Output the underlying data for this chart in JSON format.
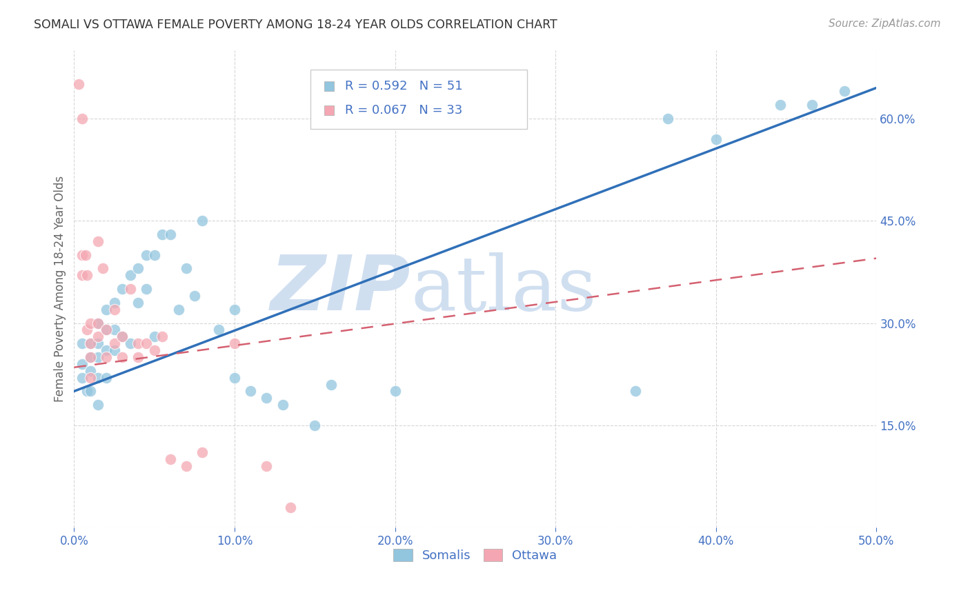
{
  "title": "SOMALI VS OTTAWA FEMALE POVERTY AMONG 18-24 YEAR OLDS CORRELATION CHART",
  "source": "Source: ZipAtlas.com",
  "ylabel": "Female Poverty Among 18-24 Year Olds",
  "xlim": [
    0.0,
    0.5
  ],
  "ylim": [
    0.0,
    0.7
  ],
  "yticks": [
    0.0,
    0.15,
    0.3,
    0.45,
    0.6
  ],
  "xticks": [
    0.0,
    0.1,
    0.2,
    0.3,
    0.4,
    0.5
  ],
  "somali_R": 0.592,
  "somali_N": 51,
  "ottawa_R": 0.067,
  "ottawa_N": 33,
  "somali_color": "#92c5de",
  "ottawa_color": "#f4a7b2",
  "somali_line_color": "#3070b8",
  "ottawa_line_color": "#d46070",
  "watermark_zip": "ZIP",
  "watermark_atlas": "atlas",
  "watermark_color": "#d0dff0",
  "background_color": "#ffffff",
  "grid_color": "#cccccc",
  "title_color": "#333333",
  "axis_label_color": "#666666",
  "tick_label_color": "#4472c4",
  "somali_x": [
    0.005,
    0.005,
    0.005,
    0.008,
    0.01,
    0.01,
    0.01,
    0.01,
    0.015,
    0.015,
    0.015,
    0.015,
    0.015,
    0.02,
    0.02,
    0.02,
    0.02,
    0.025,
    0.025,
    0.025,
    0.03,
    0.03,
    0.035,
    0.035,
    0.04,
    0.04,
    0.045,
    0.045,
    0.05,
    0.05,
    0.055,
    0.06,
    0.065,
    0.07,
    0.075,
    0.08,
    0.09,
    0.1,
    0.1,
    0.11,
    0.12,
    0.13,
    0.15,
    0.16,
    0.2,
    0.35,
    0.37,
    0.4,
    0.44,
    0.46,
    0.48
  ],
  "somali_y": [
    0.27,
    0.24,
    0.22,
    0.2,
    0.27,
    0.25,
    0.23,
    0.2,
    0.3,
    0.27,
    0.25,
    0.22,
    0.18,
    0.32,
    0.29,
    0.26,
    0.22,
    0.33,
    0.29,
    0.26,
    0.35,
    0.28,
    0.37,
    0.27,
    0.38,
    0.33,
    0.4,
    0.35,
    0.4,
    0.28,
    0.43,
    0.43,
    0.32,
    0.38,
    0.34,
    0.45,
    0.29,
    0.32,
    0.22,
    0.2,
    0.19,
    0.18,
    0.15,
    0.21,
    0.2,
    0.2,
    0.6,
    0.57,
    0.62,
    0.62,
    0.64
  ],
  "ottawa_x": [
    0.003,
    0.005,
    0.005,
    0.005,
    0.007,
    0.008,
    0.008,
    0.01,
    0.01,
    0.01,
    0.01,
    0.015,
    0.015,
    0.015,
    0.018,
    0.02,
    0.02,
    0.025,
    0.025,
    0.03,
    0.03,
    0.035,
    0.04,
    0.04,
    0.045,
    0.05,
    0.055,
    0.06,
    0.07,
    0.08,
    0.1,
    0.12,
    0.135
  ],
  "ottawa_y": [
    0.65,
    0.6,
    0.4,
    0.37,
    0.4,
    0.37,
    0.29,
    0.3,
    0.27,
    0.25,
    0.22,
    0.42,
    0.3,
    0.28,
    0.38,
    0.29,
    0.25,
    0.32,
    0.27,
    0.28,
    0.25,
    0.35,
    0.27,
    0.25,
    0.27,
    0.26,
    0.28,
    0.1,
    0.09,
    0.11,
    0.27,
    0.09,
    0.03
  ],
  "somali_line_x0": 0.0,
  "somali_line_y0": 0.2,
  "somali_line_x1": 0.5,
  "somali_line_y1": 0.645,
  "ottawa_line_x0": 0.0,
  "ottawa_line_y0": 0.235,
  "ottawa_line_x1": 0.5,
  "ottawa_line_y1": 0.395
}
